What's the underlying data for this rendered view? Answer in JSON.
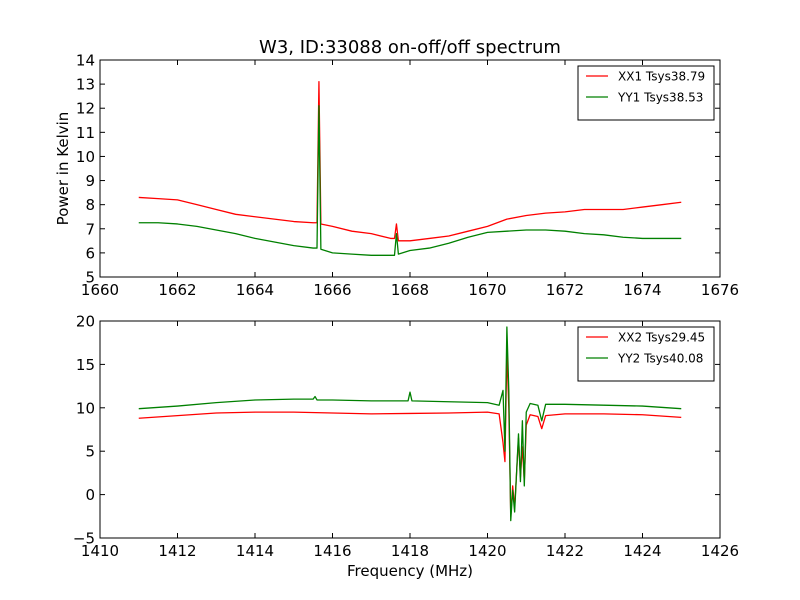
{
  "figure": {
    "title": "W3, ID:33088 on-off/off spectrum"
  },
  "chart_data": [
    {
      "type": "line",
      "title": "W3, ID:33088 on-off/off spectrum",
      "xlabel": "",
      "ylabel": "Power in Kelvin",
      "xlim": [
        1660,
        1676
      ],
      "ylim": [
        5,
        14
      ],
      "xticks": [
        1660,
        1662,
        1664,
        1666,
        1668,
        1670,
        1672,
        1674,
        1676
      ],
      "yticks": [
        5,
        6,
        7,
        8,
        9,
        10,
        11,
        12,
        13,
        14
      ],
      "grid": false,
      "legend": "top-right",
      "series": [
        {
          "name": "XX1 Tsys38.79",
          "color": "#ff0000",
          "x": [
            1661.0,
            1661.5,
            1662.0,
            1662.5,
            1663.0,
            1663.5,
            1664.0,
            1664.5,
            1665.0,
            1665.5,
            1665.6,
            1665.65,
            1665.7,
            1666.0,
            1666.5,
            1667.0,
            1667.5,
            1667.6,
            1667.65,
            1667.7,
            1668.0,
            1668.5,
            1669.0,
            1669.5,
            1670.0,
            1670.5,
            1671.0,
            1671.5,
            1672.0,
            1672.5,
            1673.0,
            1673.5,
            1674.0,
            1674.5,
            1675.0
          ],
          "y": [
            8.3,
            8.25,
            8.2,
            8.0,
            7.8,
            7.6,
            7.5,
            7.4,
            7.3,
            7.25,
            7.25,
            13.1,
            7.2,
            7.1,
            6.9,
            6.8,
            6.6,
            6.6,
            7.2,
            6.5,
            6.5,
            6.6,
            6.7,
            6.9,
            7.1,
            7.4,
            7.55,
            7.65,
            7.7,
            7.8,
            7.8,
            7.8,
            7.9,
            8.0,
            8.1
          ]
        },
        {
          "name": "YY1 Tsys38.53",
          "color": "#008000",
          "x": [
            1661.0,
            1661.5,
            1662.0,
            1662.5,
            1663.0,
            1663.5,
            1664.0,
            1664.5,
            1665.0,
            1665.5,
            1665.6,
            1665.65,
            1665.7,
            1666.0,
            1666.5,
            1667.0,
            1667.5,
            1667.6,
            1667.65,
            1667.7,
            1668.0,
            1668.5,
            1669.0,
            1669.5,
            1670.0,
            1670.5,
            1671.0,
            1671.5,
            1672.0,
            1672.5,
            1673.0,
            1673.5,
            1674.0,
            1674.5,
            1675.0
          ],
          "y": [
            7.25,
            7.25,
            7.2,
            7.1,
            6.95,
            6.8,
            6.6,
            6.45,
            6.3,
            6.2,
            6.2,
            12.1,
            6.15,
            6.0,
            5.95,
            5.9,
            5.9,
            5.9,
            6.8,
            5.95,
            6.1,
            6.2,
            6.4,
            6.65,
            6.85,
            6.9,
            6.95,
            6.95,
            6.9,
            6.8,
            6.75,
            6.65,
            6.6,
            6.6,
            6.6
          ]
        }
      ]
    },
    {
      "type": "line",
      "title": "",
      "xlabel": "Frequency (MHz)",
      "ylabel": "",
      "xlim": [
        1410,
        1426
      ],
      "ylim": [
        -5,
        20
      ],
      "xticks": [
        1410,
        1412,
        1414,
        1416,
        1418,
        1420,
        1422,
        1424,
        1426
      ],
      "yticks": [
        -5,
        0,
        5,
        10,
        15,
        20
      ],
      "grid": false,
      "legend": "top-right",
      "series": [
        {
          "name": "XX2 Tsys29.45",
          "color": "#ff0000",
          "x": [
            1411.0,
            1412.0,
            1413.0,
            1414.0,
            1415.0,
            1416.0,
            1417.0,
            1418.0,
            1419.0,
            1420.0,
            1420.3,
            1420.4,
            1420.45,
            1420.5,
            1420.55,
            1420.6,
            1420.65,
            1420.7,
            1420.8,
            1420.85,
            1420.9,
            1420.95,
            1421.0,
            1421.1,
            1421.3,
            1421.4,
            1421.5,
            1422.0,
            1423.0,
            1424.0,
            1425.0
          ],
          "y": [
            8.8,
            9.1,
            9.4,
            9.5,
            9.5,
            9.4,
            9.3,
            9.35,
            9.4,
            9.5,
            9.3,
            6.0,
            3.8,
            16.5,
            10.0,
            -2.5,
            1.0,
            -1.5,
            6.5,
            2.0,
            5.5,
            1.5,
            8.0,
            9.2,
            9.0,
            7.6,
            9.1,
            9.3,
            9.3,
            9.2,
            8.9
          ]
        },
        {
          "name": "YY2 Tsys40.08",
          "color": "#008000",
          "x": [
            1411.0,
            1412.0,
            1413.0,
            1414.0,
            1415.0,
            1415.5,
            1415.55,
            1415.6,
            1416.0,
            1417.0,
            1417.95,
            1418.0,
            1418.05,
            1419.0,
            1420.0,
            1420.3,
            1420.4,
            1420.45,
            1420.5,
            1420.55,
            1420.6,
            1420.65,
            1420.7,
            1420.8,
            1420.85,
            1420.9,
            1420.95,
            1421.0,
            1421.1,
            1421.3,
            1421.4,
            1421.5,
            1422.0,
            1423.0,
            1424.0,
            1425.0
          ],
          "y": [
            9.9,
            10.2,
            10.6,
            10.9,
            11.0,
            11.0,
            11.3,
            10.9,
            10.9,
            10.8,
            10.8,
            11.8,
            10.8,
            10.7,
            10.6,
            10.3,
            12.0,
            5.0,
            19.3,
            12.0,
            -3.0,
            0.5,
            -2.0,
            7.0,
            1.5,
            8.5,
            1.0,
            9.5,
            10.5,
            10.3,
            8.5,
            10.4,
            10.4,
            10.3,
            10.2,
            9.9
          ]
        }
      ]
    }
  ]
}
